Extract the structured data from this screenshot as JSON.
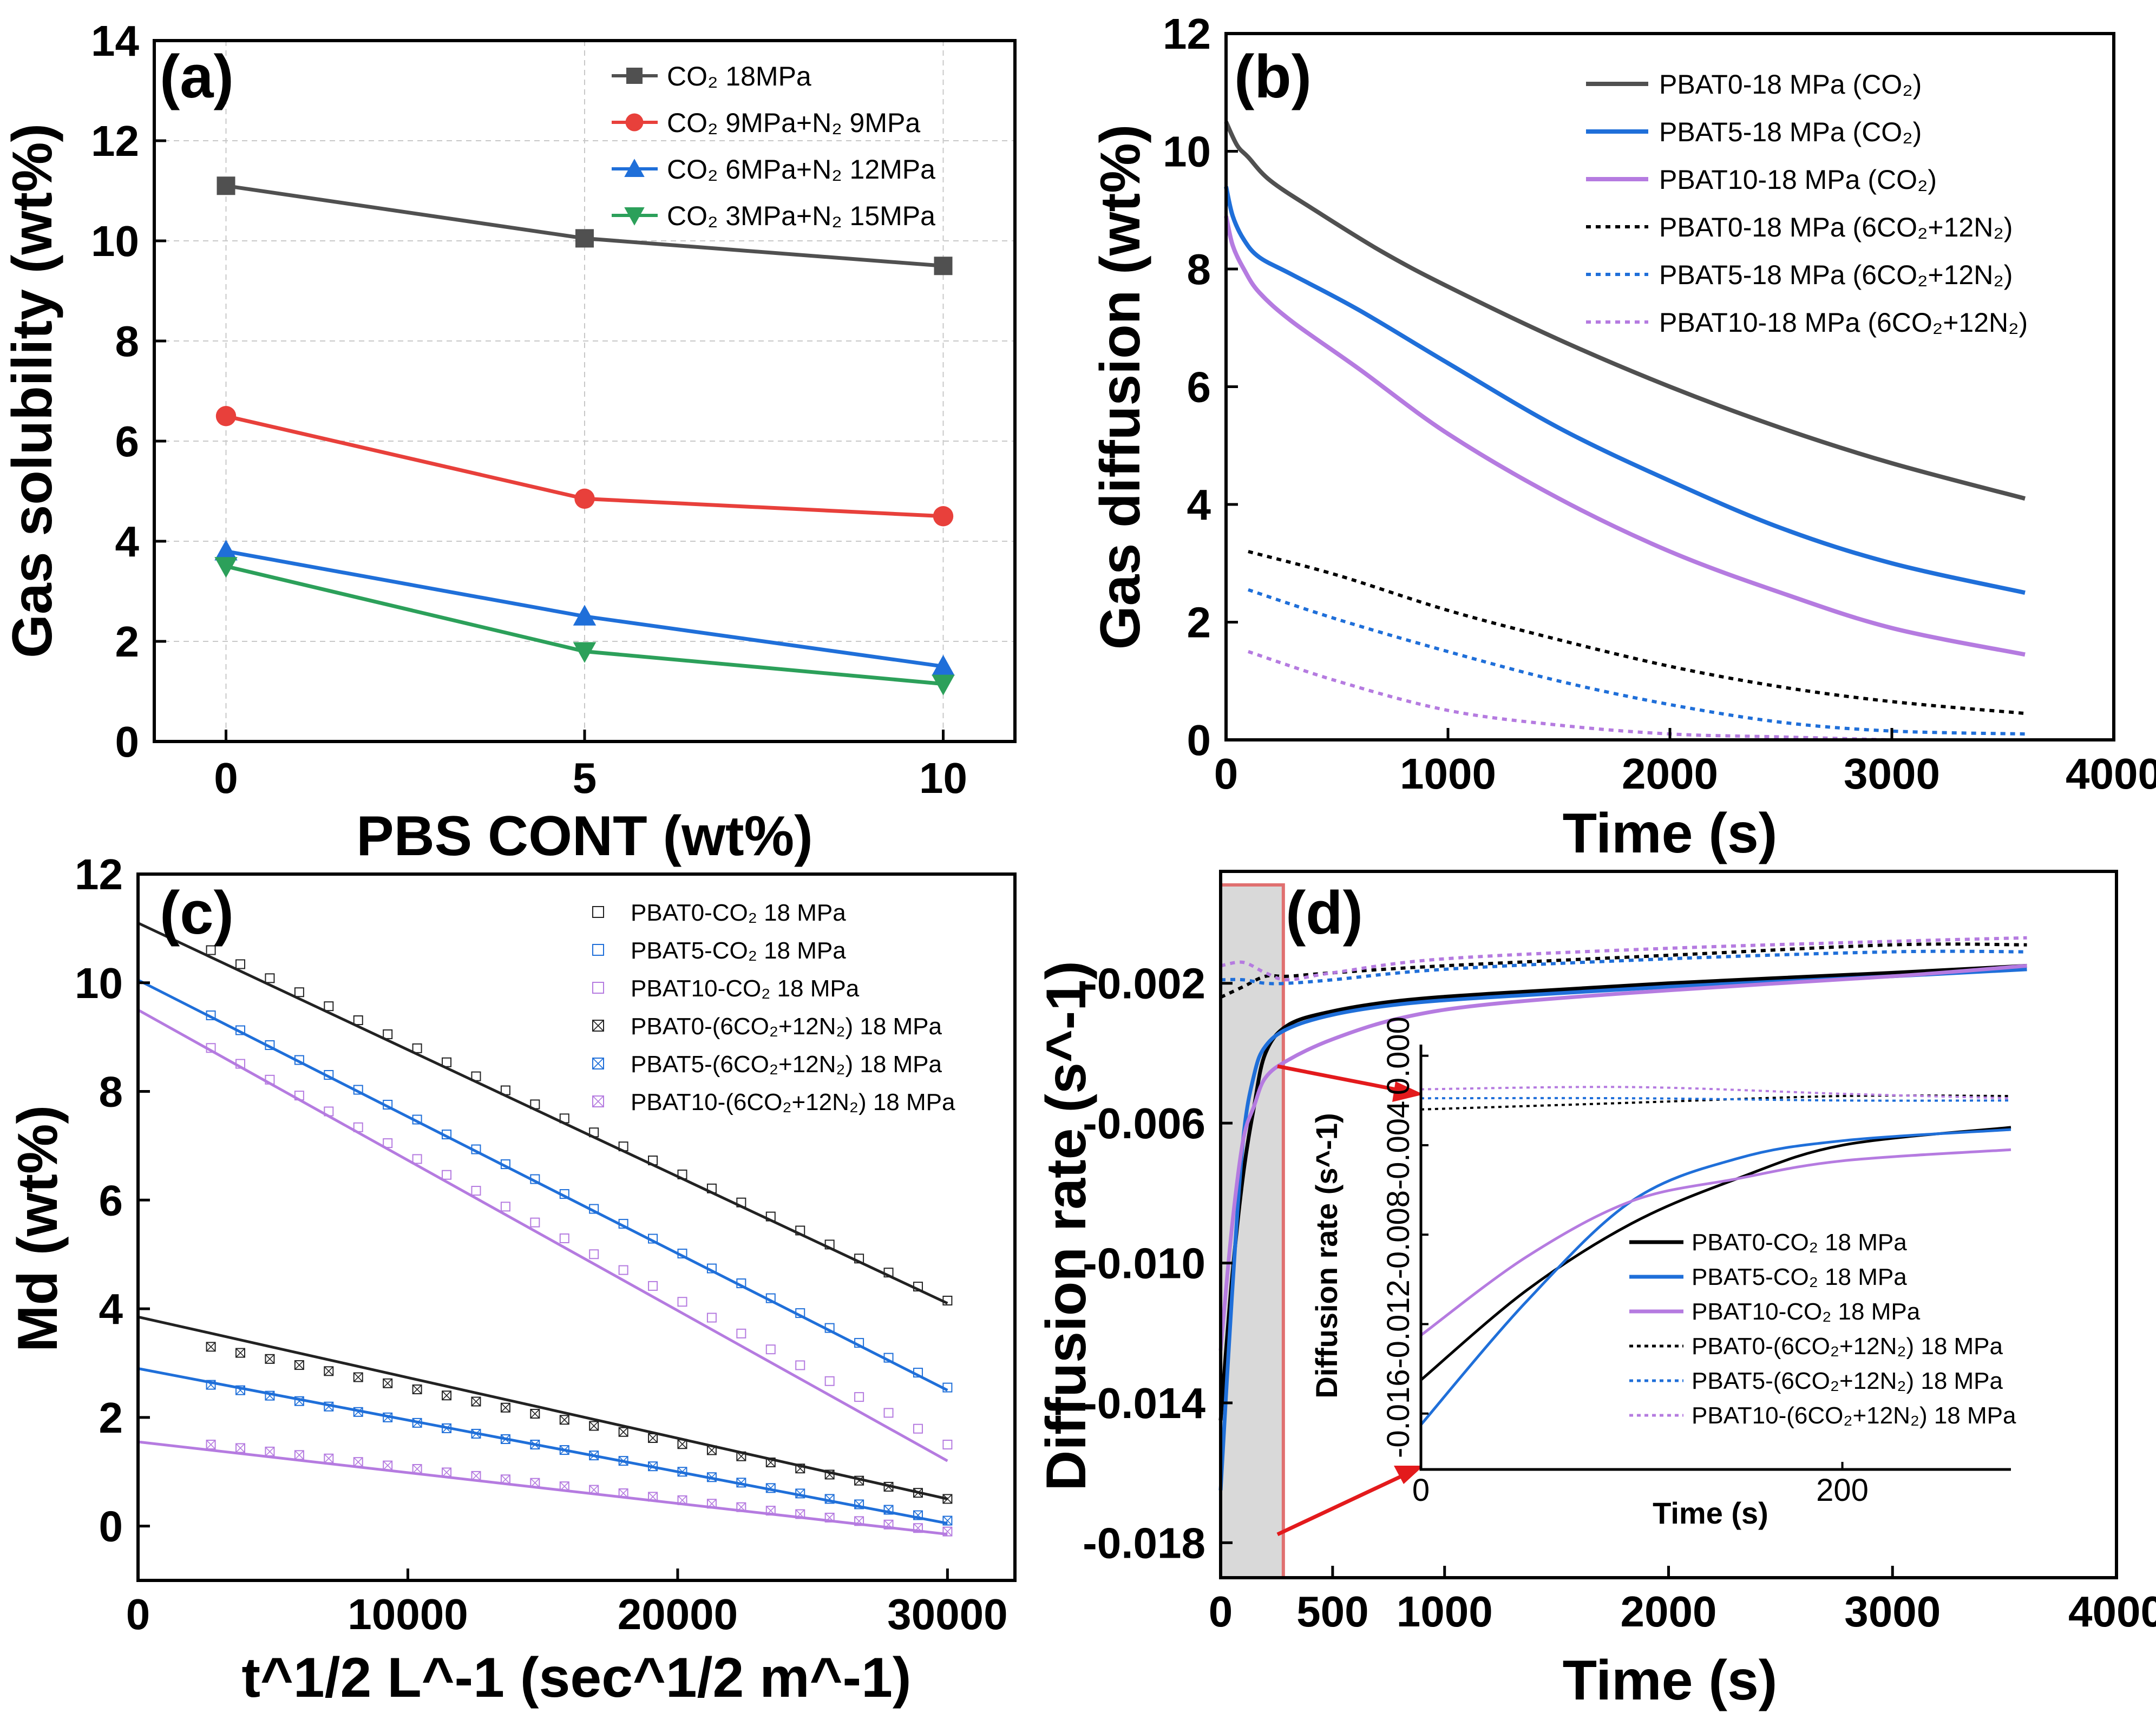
{
  "chart_data": [
    {
      "id": "a",
      "type": "line",
      "panel_label": "(a)",
      "xlabel": "PBS CONT (wt%)",
      "ylabel": "Gas solubility (wt%)",
      "xlim": [
        -1,
        11
      ],
      "ylim": [
        0,
        14
      ],
      "xticks": [
        "0",
        "5",
        "10"
      ],
      "yticks": [
        "0",
        "2",
        "4",
        "6",
        "8",
        "10",
        "12",
        "14"
      ],
      "grid": true,
      "legend_position": "top-right",
      "x": [
        0,
        5,
        10
      ],
      "series": [
        {
          "name": "CO2 18MPa",
          "legend": "CO₂ 18MPa",
          "color": "#505050",
          "marker": "square",
          "values": [
            11.1,
            10.05,
            9.5
          ]
        },
        {
          "name": "CO2 9MPa+N2 9MPa",
          "legend": "CO₂ 9MPa+N₂ 9MPa",
          "color": "#e8403b",
          "marker": "circle",
          "values": [
            6.5,
            4.85,
            4.5
          ]
        },
        {
          "name": "CO2 6MPa+N2 12MPa",
          "legend": "CO₂ 6MPa+N₂ 12MPa",
          "color": "#1f6fd9",
          "marker": "triangle-up",
          "values": [
            3.8,
            2.5,
            1.5
          ]
        },
        {
          "name": "CO2 3MPa+N2 15MPa",
          "legend": "CO₂ 3MPa+N₂ 15MPa",
          "color": "#2ca05a",
          "marker": "triangle-down",
          "values": [
            3.5,
            1.8,
            1.15
          ]
        }
      ]
    },
    {
      "id": "b",
      "type": "line",
      "panel_label": "(b)",
      "xlabel": "Time (s)",
      "ylabel": "Gas diffusion (wt%)",
      "xlim": [
        0,
        4000
      ],
      "ylim": [
        0,
        12
      ],
      "xticks": [
        "0",
        "1000",
        "2000",
        "3000",
        "4000"
      ],
      "yticks": [
        "0",
        "2",
        "4",
        "6",
        "8",
        "10",
        "12"
      ],
      "legend_position": "top-right",
      "series": [
        {
          "name": "PBAT0-18 MPa (CO2)",
          "legend": "PBAT0-18 MPa (CO₂)",
          "color": "#505050",
          "style": "solid",
          "x": [
            0,
            50,
            100,
            200,
            400,
            700,
            1000,
            1500,
            2000,
            2500,
            3000,
            3600
          ],
          "values": [
            10.5,
            10.1,
            9.9,
            9.5,
            9.0,
            8.3,
            7.7,
            6.8,
            6.0,
            5.3,
            4.7,
            4.1
          ]
        },
        {
          "name": "PBAT5-18 MPa (CO2)",
          "legend": "PBAT5-18 MPa (CO₂)",
          "color": "#1f6fd9",
          "style": "solid",
          "x": [
            0,
            30,
            80,
            150,
            300,
            600,
            1000,
            1500,
            2000,
            2500,
            3000,
            3600
          ],
          "values": [
            9.4,
            8.9,
            8.5,
            8.2,
            7.9,
            7.3,
            6.4,
            5.3,
            4.4,
            3.6,
            3.0,
            2.5
          ]
        },
        {
          "name": "PBAT10-18 MPa (CO2)",
          "legend": "PBAT10-18 MPa (CO₂)",
          "color": "#b57be0",
          "style": "solid",
          "x": [
            0,
            30,
            80,
            150,
            300,
            600,
            1000,
            1500,
            2000,
            2500,
            3000,
            3600
          ],
          "values": [
            8.9,
            8.4,
            8.0,
            7.6,
            7.1,
            6.3,
            5.2,
            4.1,
            3.2,
            2.5,
            1.9,
            1.45
          ]
        },
        {
          "name": "PBAT0-18 MPa (6CO2+12N2)",
          "legend": "PBAT0-18 MPa (6CO₂+12N₂)",
          "color": "#000000",
          "style": "dotted",
          "x": [
            100,
            500,
            1000,
            1500,
            2000,
            2500,
            3000,
            3600
          ],
          "values": [
            3.2,
            2.8,
            2.2,
            1.7,
            1.25,
            0.9,
            0.65,
            0.45
          ]
        },
        {
          "name": "PBAT5-18 MPa (6CO2+12N2)",
          "legend": "PBAT5-18 MPa (6CO₂+12N₂)",
          "color": "#1f6fd9",
          "style": "dotted",
          "x": [
            100,
            500,
            1000,
            1500,
            2000,
            2500,
            3000,
            3600
          ],
          "values": [
            2.55,
            2.05,
            1.5,
            1.0,
            0.6,
            0.3,
            0.15,
            0.1
          ]
        },
        {
          "name": "PBAT10-18 MPa (6CO2+12N2)",
          "legend": "PBAT10-18 MPa (6CO₂+12N₂)",
          "color": "#b57be0",
          "style": "dotted",
          "x": [
            100,
            500,
            1000,
            1500,
            2000,
            2500,
            3000
          ],
          "values": [
            1.5,
            1.0,
            0.5,
            0.25,
            0.1,
            0.05,
            0.0
          ]
        }
      ]
    },
    {
      "id": "c",
      "type": "scatter",
      "panel_label": "(c)",
      "xlabel": "t^1/2 L^-1 (sec^1/2 m^-1)",
      "ylabel": "Md (wt%)",
      "xlim": [
        0,
        32500
      ],
      "ylim": [
        -1,
        12
      ],
      "xticks": [
        "0",
        "10000",
        "20000",
        "30000"
      ],
      "yticks": [
        "0",
        "2",
        "4",
        "6",
        "8",
        "10",
        "12"
      ],
      "legend_position": "top-right",
      "series": [
        {
          "name": "PBAT0-CO2 18 MPa",
          "legend": "PBAT0-CO₂ 18 MPa",
          "color": "#222222",
          "marker": "open-square",
          "fit_start": 11.1,
          "fit_end": 4.1,
          "data_x": [
            2700,
            30000
          ],
          "data_y": [
            10.6,
            4.15
          ]
        },
        {
          "name": "PBAT5-CO2 18 MPa",
          "legend": "PBAT5-CO₂ 18 MPa",
          "color": "#1f6fd9",
          "marker": "open-square",
          "fit_start": 10.05,
          "fit_end": 2.5,
          "data_x": [
            2700,
            30000
          ],
          "data_y": [
            9.4,
            2.55
          ]
        },
        {
          "name": "PBAT10-CO2 18 MPa",
          "legend": "PBAT10-CO₂ 18 MPa",
          "color": "#b57be0",
          "marker": "open-square",
          "fit_start": 9.5,
          "fit_end": 1.2,
          "data_x": [
            2700,
            30000
          ],
          "data_y": [
            8.8,
            1.5
          ]
        },
        {
          "name": "PBAT0-(6CO2+12N2) 18 MPa",
          "legend": "PBAT0-(6CO₂+12N₂) 18 MPa",
          "color": "#222222",
          "marker": "crossed-square",
          "fit_start": 3.85,
          "fit_end": 0.5,
          "data_x": [
            2700,
            30000
          ],
          "data_y": [
            3.3,
            0.5
          ]
        },
        {
          "name": "PBAT5-(6CO2+12N2) 18 MPa",
          "legend": "PBAT5-(6CO₂+12N₂) 18 MPa",
          "color": "#1f6fd9",
          "marker": "crossed-square",
          "fit_start": 2.9,
          "fit_end": 0.05,
          "data_x": [
            2700,
            30000
          ],
          "data_y": [
            2.6,
            0.1
          ]
        },
        {
          "name": "PBAT10-(6CO2+12N2) 18 MPa",
          "legend": "PBAT10-(6CO₂+12N₂) 18 MPa",
          "color": "#b57be0",
          "marker": "crossed-square",
          "fit_start": 1.55,
          "fit_end": -0.15,
          "data_x": [
            2700,
            30000
          ],
          "data_y": [
            1.5,
            -0.1
          ]
        }
      ]
    },
    {
      "id": "d",
      "type": "line",
      "panel_label": "(d)",
      "xlabel": "Time (s)",
      "ylabel": "Diffusion rate (s^-1)",
      "xlim": [
        0,
        4000
      ],
      "ylim": [
        -0.019,
        0.0012
      ],
      "xticks": [
        "0",
        "500",
        "1000",
        "2000",
        "3000",
        "4000"
      ],
      "yticks": [
        "-0.002",
        "-0.006",
        "-0.010",
        "-0.014",
        "-0.018"
      ],
      "highlight_range_x": [
        0,
        280
      ],
      "legend_position": "inside inset",
      "series": [
        {
          "name": "PBAT0-CO2 18 MPa",
          "legend": "PBAT0-CO₂ 18 MPa",
          "color": "#000000",
          "style": "solid",
          "x": [
            0,
            50,
            100,
            150,
            200,
            300,
            500,
            800,
            1200,
            2000,
            3000,
            3600
          ],
          "values": [
            -0.0145,
            -0.0105,
            -0.0075,
            -0.0055,
            -0.004,
            -0.0032,
            -0.0028,
            -0.0025,
            -0.0023,
            -0.002,
            -0.0017,
            -0.0015
          ]
        },
        {
          "name": "PBAT5-CO2 18 MPa",
          "legend": "PBAT5-CO₂ 18 MPa",
          "color": "#1f6fd9",
          "style": "solid",
          "x": [
            0,
            50,
            100,
            150,
            200,
            300,
            500,
            800,
            1200,
            2000,
            3000,
            3600
          ],
          "values": [
            -0.0165,
            -0.011,
            -0.0065,
            -0.0046,
            -0.0038,
            -0.0033,
            -0.0029,
            -0.0026,
            -0.0024,
            -0.0021,
            -0.0018,
            -0.0016
          ]
        },
        {
          "name": "PBAT10-CO2 18 MPa",
          "legend": "PBAT10-CO₂ 18 MPa",
          "color": "#b57be0",
          "style": "solid",
          "x": [
            0,
            50,
            100,
            150,
            200,
            300,
            500,
            800,
            1200,
            2000,
            3000,
            3600
          ],
          "values": [
            -0.0125,
            -0.009,
            -0.0065,
            -0.0055,
            -0.0047,
            -0.0042,
            -0.0036,
            -0.003,
            -0.0026,
            -0.0022,
            -0.0018,
            -0.0015
          ]
        },
        {
          "name": "PBAT0-(6CO2+12N2) 18 MPa",
          "legend": "PBAT0-(6CO₂+12N₂) 18 MPa",
          "color": "#000000",
          "style": "dotted",
          "x": [
            0,
            100,
            200,
            300,
            500,
            1000,
            2000,
            3000,
            3600
          ],
          "values": [
            -0.0024,
            -0.0021,
            -0.0018,
            -0.0018,
            -0.0017,
            -0.0015,
            -0.0012,
            -0.0009,
            -0.0009
          ]
        },
        {
          "name": "PBAT5-(6CO2+12N2) 18 MPa",
          "legend": "PBAT5-(6CO₂+12N₂) 18 MPa",
          "color": "#1f6fd9",
          "style": "dotted",
          "x": [
            0,
            100,
            200,
            300,
            500,
            1000,
            2000,
            3000,
            3600
          ],
          "values": [
            -0.0019,
            -0.0019,
            -0.002,
            -0.002,
            -0.0019,
            -0.0016,
            -0.0013,
            -0.0011,
            -0.0011
          ]
        },
        {
          "name": "PBAT10-(6CO2+12N2) 18 MPa",
          "legend": "PBAT10-(6CO₂+12N₂) 18 MPa",
          "color": "#b57be0",
          "style": "dotted",
          "x": [
            0,
            100,
            200,
            300,
            500,
            1000,
            2000,
            3000,
            3600
          ],
          "values": [
            -0.0015,
            -0.0014,
            -0.0017,
            -0.0019,
            -0.0017,
            -0.0013,
            -0.001,
            -0.0008,
            -0.0007
          ]
        }
      ],
      "inset": {
        "xlabel": "Time (s)",
        "ylabel": "Diffusion rate (s^-1)",
        "xlim": [
          0,
          280
        ],
        "ylim": [
          -0.0185,
          0.0005
        ],
        "xticks": [
          "0",
          "200"
        ],
        "yticks": [
          "0.000",
          "-0.004",
          "-0.008",
          "-0.012",
          "-0.016"
        ]
      }
    }
  ]
}
